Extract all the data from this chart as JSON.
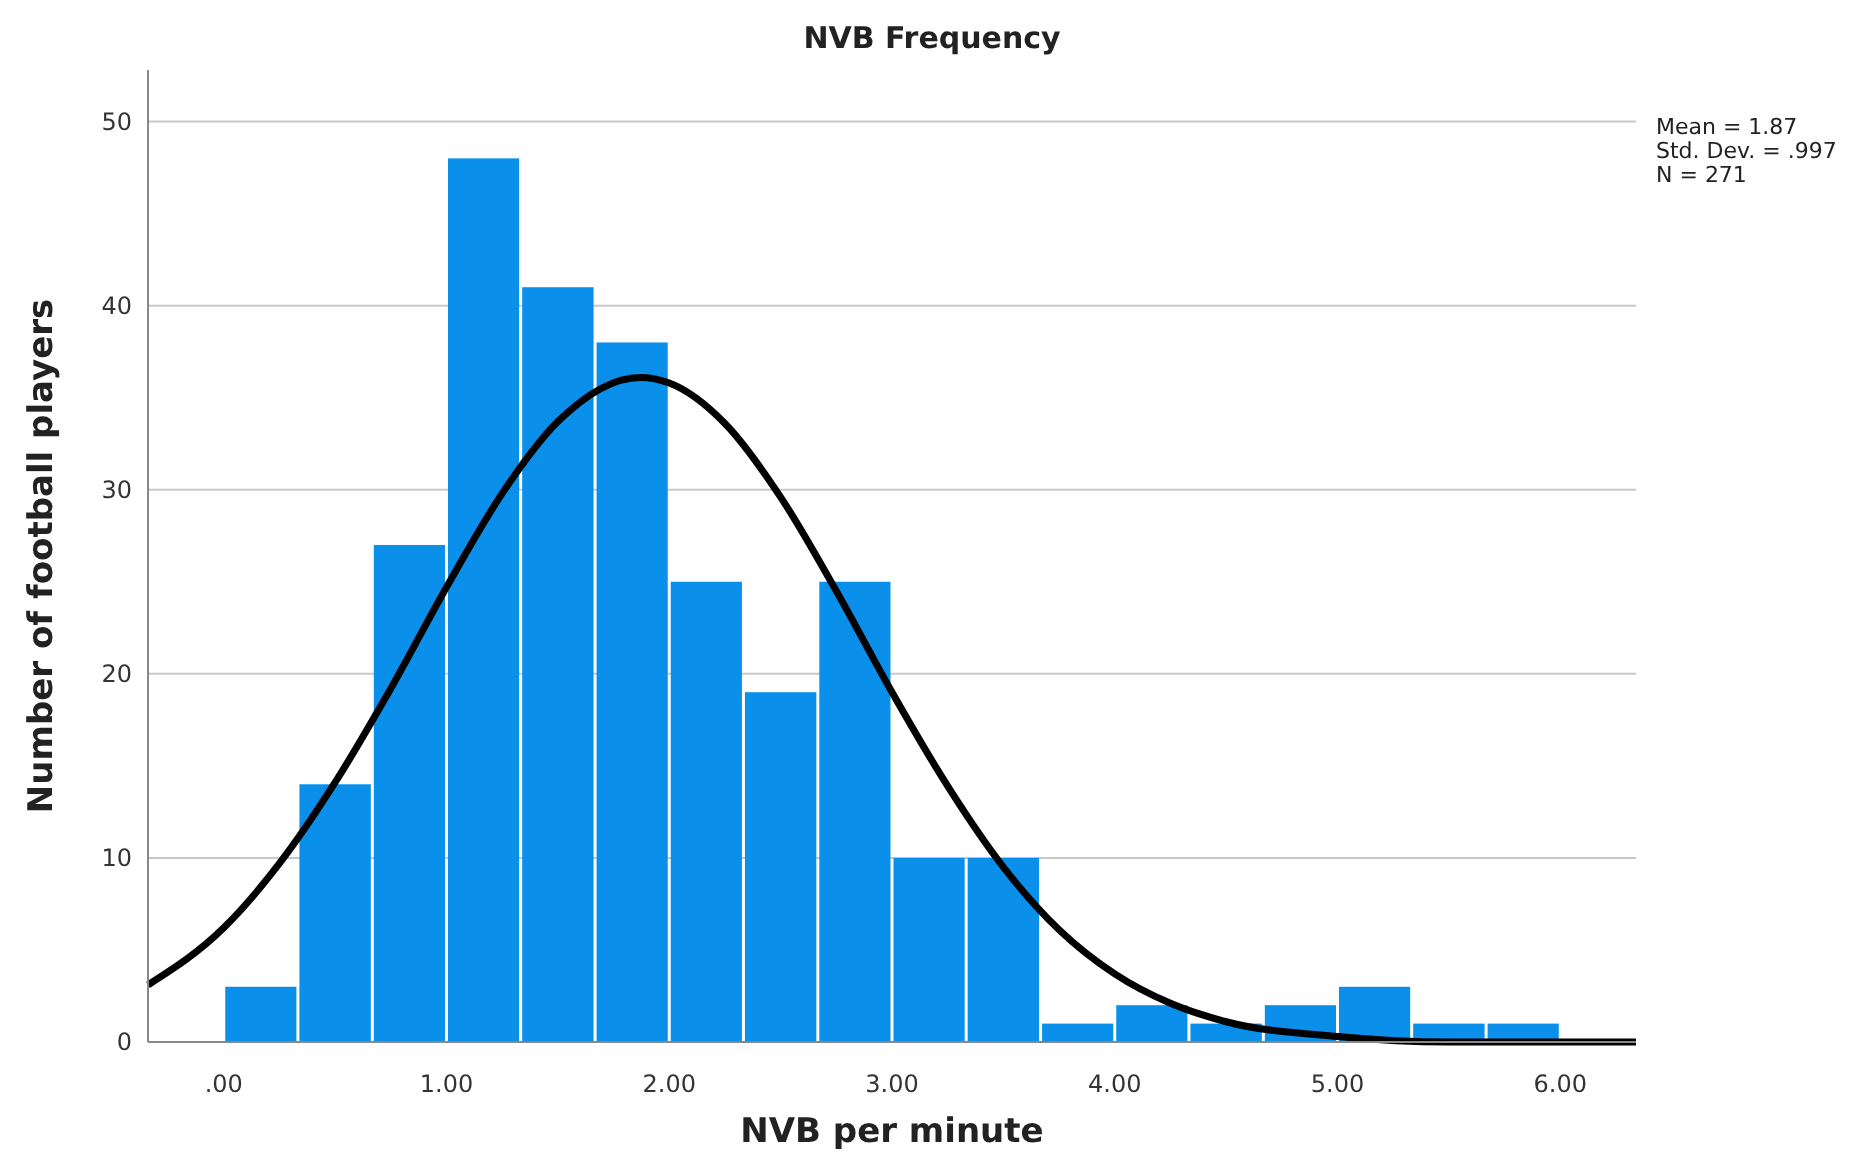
{
  "chart_data": {
    "type": "histogram",
    "title": "NVB Frequency",
    "xlabel": "NVB per minute",
    "ylabel": "Number of football players",
    "bins": [
      0,
      0.333,
      0.667,
      1,
      1.333,
      1.667,
      2,
      2.333,
      2.667,
      3,
      3.333,
      3.667,
      4,
      4.333,
      4.667,
      5,
      5.333,
      5.667,
      6
    ],
    "values": [
      3,
      14,
      27,
      48,
      41,
      38,
      25,
      19,
      25,
      10,
      10,
      1,
      2,
      1,
      2,
      3,
      1,
      1
    ],
    "color": "#0a90eb",
    "series": [
      {
        "type": "line",
        "color": "#000000",
        "marker": "none",
        "x": [
          -0.34,
          0,
          0.25,
          0.5,
          0.75,
          1,
          1.25,
          1.5,
          1.87,
          2,
          2.25,
          2.5,
          2.75,
          3,
          3.25,
          3.5,
          3.75,
          4,
          4.25,
          4.5,
          5,
          5.5,
          6,
          6.34
        ],
        "values": [
          3.1,
          6.2,
          9.7,
          14.1,
          19.2,
          24.7,
          29.8,
          33.7,
          36.1,
          35.8,
          33.6,
          29.6,
          24.5,
          19,
          13.9,
          9.5,
          6.1,
          3.7,
          2.1,
          1.1,
          0.3,
          0,
          0,
          0
        ]
      }
    ],
    "xlim": [
      -0.34,
      6.34
    ],
    "ylim": [
      0,
      52.8
    ],
    "xticks": [
      {
        "value": 0,
        "label": ".00"
      },
      {
        "value": 1,
        "label": "1.00"
      },
      {
        "value": 2,
        "label": "2.00"
      },
      {
        "value": 3,
        "label": "3.00"
      },
      {
        "value": 4,
        "label": "4.00"
      },
      {
        "value": 5,
        "label": "5.00"
      },
      {
        "value": 6,
        "label": "6.00"
      }
    ],
    "yticks": [
      0,
      10,
      20,
      30,
      40,
      50
    ],
    "grid": "y",
    "annotations": [
      "Mean = 1.87",
      "Std. Dev. = .997",
      "N = 271"
    ]
  }
}
